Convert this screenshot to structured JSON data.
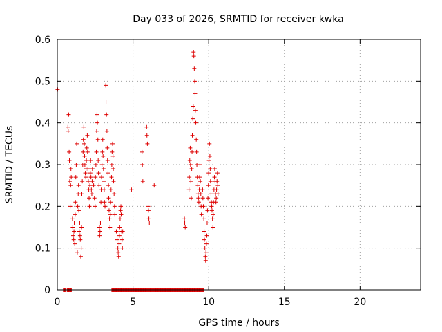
{
  "chart_data": {
    "type": "scatter",
    "title": "Day 033 of 2026, SRMTID for receiver kwka",
    "xlabel": "GPS time / hours",
    "ylabel": "SRMTID / TECUs",
    "xlim": [
      0,
      24
    ],
    "ylim": [
      0,
      0.6
    ],
    "x_ticks": [
      0,
      5,
      10,
      15,
      20
    ],
    "x_tick_labels": [
      "0",
      "5",
      "10",
      "15",
      "20"
    ],
    "y_ticks": [
      0,
      0.1,
      0.2,
      0.3,
      0.4,
      0.5,
      0.6
    ],
    "y_tick_labels": [
      "0",
      "0.1",
      "0.2",
      "0.3",
      "0.4",
      "0.5",
      "0.6"
    ],
    "grid": true,
    "marker": "plus",
    "color": "#dd0000",
    "series": [
      {
        "points": [
          [
            0.02,
            0.48
          ],
          [
            0.7,
            0.39
          ],
          [
            0.72,
            0.38
          ],
          [
            0.75,
            0.42
          ],
          [
            0.78,
            0.33
          ],
          [
            0.8,
            0.31
          ],
          [
            0.82,
            0.26
          ],
          [
            0.85,
            0.2
          ],
          [
            0.88,
            0.25
          ],
          [
            0.9,
            0.29
          ],
          [
            0.92,
            0.27
          ],
          [
            1.0,
            0.17
          ],
          [
            1.02,
            0.15
          ],
          [
            1.05,
            0.13
          ],
          [
            1.08,
            0.12
          ],
          [
            1.1,
            0.14
          ],
          [
            1.12,
            0.16
          ],
          [
            1.15,
            0.11
          ],
          [
            1.18,
            0.18
          ],
          [
            1.2,
            0.21
          ],
          [
            1.22,
            0.27
          ],
          [
            1.25,
            0.3
          ],
          [
            1.28,
            0.35
          ],
          [
            1.3,
            0.1
          ],
          [
            1.32,
            0.09
          ],
          [
            1.35,
            0.2
          ],
          [
            1.38,
            0.23
          ],
          [
            1.4,
            0.25
          ],
          [
            1.42,
            0.19
          ],
          [
            1.45,
            0.14
          ],
          [
            1.48,
            0.16
          ],
          [
            1.5,
            0.13
          ],
          [
            1.52,
            0.12
          ],
          [
            1.55,
            0.08
          ],
          [
            1.58,
            0.1
          ],
          [
            1.6,
            0.15
          ],
          [
            1.62,
            0.23
          ],
          [
            1.65,
            0.26
          ],
          [
            1.68,
            0.3
          ],
          [
            1.7,
            0.33
          ],
          [
            1.72,
            0.36
          ],
          [
            1.75,
            0.39
          ],
          [
            1.78,
            0.35
          ],
          [
            1.8,
            0.32
          ],
          [
            1.82,
            0.3
          ],
          [
            1.85,
            0.28
          ],
          [
            1.88,
            0.27
          ],
          [
            1.9,
            0.29
          ],
          [
            1.92,
            0.31
          ],
          [
            1.95,
            0.34
          ],
          [
            1.98,
            0.37
          ],
          [
            2.0,
            0.33
          ],
          [
            2.02,
            0.29
          ],
          [
            2.05,
            0.26
          ],
          [
            2.08,
            0.24
          ],
          [
            2.1,
            0.22
          ],
          [
            2.12,
            0.2
          ],
          [
            2.15,
            0.25
          ],
          [
            2.18,
            0.28
          ],
          [
            2.2,
            0.31
          ],
          [
            2.22,
            0.27
          ],
          [
            2.25,
            0.24
          ],
          [
            2.28,
            0.23
          ],
          [
            2.3,
            0.26
          ],
          [
            2.32,
            0.29
          ],
          [
            2.4,
            0.25
          ],
          [
            2.45,
            0.22
          ],
          [
            2.5,
            0.2
          ],
          [
            2.52,
            0.27
          ],
          [
            2.55,
            0.3
          ],
          [
            2.58,
            0.33
          ],
          [
            2.6,
            0.38
          ],
          [
            2.62,
            0.42
          ],
          [
            2.65,
            0.4
          ],
          [
            2.68,
            0.36
          ],
          [
            2.7,
            0.31
          ],
          [
            2.72,
            0.28
          ],
          [
            2.75,
            0.25
          ],
          [
            2.78,
            0.15
          ],
          [
            2.8,
            0.13
          ],
          [
            2.82,
            0.14
          ],
          [
            2.85,
            0.16
          ],
          [
            2.88,
            0.21
          ],
          [
            2.9,
            0.24
          ],
          [
            2.92,
            0.27
          ],
          [
            2.95,
            0.3
          ],
          [
            2.98,
            0.33
          ],
          [
            3.0,
            0.36
          ],
          [
            3.02,
            0.32
          ],
          [
            3.05,
            0.29
          ],
          [
            3.08,
            0.26
          ],
          [
            3.1,
            0.24
          ],
          [
            3.12,
            0.21
          ],
          [
            3.15,
            0.2
          ],
          [
            3.2,
            0.49
          ],
          [
            3.22,
            0.45
          ],
          [
            3.25,
            0.42
          ],
          [
            3.28,
            0.38
          ],
          [
            3.3,
            0.34
          ],
          [
            3.32,
            0.31
          ],
          [
            3.35,
            0.28
          ],
          [
            3.38,
            0.25
          ],
          [
            3.4,
            0.22
          ],
          [
            3.42,
            0.19
          ],
          [
            3.45,
            0.17
          ],
          [
            3.48,
            0.15
          ],
          [
            3.5,
            0.18
          ],
          [
            3.52,
            0.21
          ],
          [
            3.55,
            0.24
          ],
          [
            3.58,
            0.27
          ],
          [
            3.6,
            0.3
          ],
          [
            3.62,
            0.33
          ],
          [
            3.65,
            0.35
          ],
          [
            3.68,
            0.32
          ],
          [
            3.7,
            0.29
          ],
          [
            3.72,
            0.26
          ],
          [
            3.75,
            0.23
          ],
          [
            3.78,
            0.2
          ],
          [
            3.8,
            0.18
          ],
          [
            3.9,
            0.14
          ],
          [
            3.95,
            0.12
          ],
          [
            4.0,
            0.1
          ],
          [
            4.02,
            0.09
          ],
          [
            4.05,
            0.08
          ],
          [
            4.08,
            0.11
          ],
          [
            4.1,
            0.13
          ],
          [
            4.12,
            0.15
          ],
          [
            4.15,
            0.17
          ],
          [
            4.18,
            0.19
          ],
          [
            4.2,
            0.2
          ],
          [
            4.22,
            0.18
          ],
          [
            4.25,
            0.14
          ],
          [
            4.28,
            0.12
          ],
          [
            4.3,
            0.1
          ],
          [
            4.32,
            0.14
          ],
          [
            4.9,
            0.24
          ],
          [
            5.6,
            0.33
          ],
          [
            5.62,
            0.3
          ],
          [
            5.65,
            0.26
          ],
          [
            5.9,
            0.39
          ],
          [
            5.92,
            0.37
          ],
          [
            5.95,
            0.35
          ],
          [
            6.0,
            0.2
          ],
          [
            6.02,
            0.19
          ],
          [
            6.05,
            0.17
          ],
          [
            6.08,
            0.16
          ],
          [
            6.4,
            0.25
          ],
          [
            8.4,
            0.17
          ],
          [
            8.42,
            0.16
          ],
          [
            8.45,
            0.15
          ],
          [
            8.7,
            0.24
          ],
          [
            8.72,
            0.27
          ],
          [
            8.75,
            0.31
          ],
          [
            8.78,
            0.34
          ],
          [
            8.8,
            0.3
          ],
          [
            8.82,
            0.26
          ],
          [
            8.85,
            0.22
          ],
          [
            8.88,
            0.29
          ],
          [
            8.9,
            0.33
          ],
          [
            8.92,
            0.37
          ],
          [
            8.95,
            0.41
          ],
          [
            8.98,
            0.44
          ],
          [
            9.0,
            0.57
          ],
          [
            9.02,
            0.56
          ],
          [
            9.05,
            0.53
          ],
          [
            9.08,
            0.5
          ],
          [
            9.1,
            0.47
          ],
          [
            9.12,
            0.43
          ],
          [
            9.15,
            0.4
          ],
          [
            9.18,
            0.36
          ],
          [
            9.2,
            0.33
          ],
          [
            9.22,
            0.3
          ],
          [
            9.25,
            0.27
          ],
          [
            9.28,
            0.25
          ],
          [
            9.3,
            0.23
          ],
          [
            9.32,
            0.22
          ],
          [
            9.35,
            0.21
          ],
          [
            9.38,
            0.24
          ],
          [
            9.4,
            0.27
          ],
          [
            9.42,
            0.3
          ],
          [
            9.45,
            0.26
          ],
          [
            9.48,
            0.23
          ],
          [
            9.5,
            0.2
          ],
          [
            9.52,
            0.18
          ],
          [
            9.6,
            0.24
          ],
          [
            9.62,
            0.22
          ],
          [
            9.65,
            0.2
          ],
          [
            9.68,
            0.17
          ],
          [
            9.7,
            0.14
          ],
          [
            9.72,
            0.12
          ],
          [
            9.75,
            0.1
          ],
          [
            9.78,
            0.08
          ],
          [
            9.8,
            0.07
          ],
          [
            9.82,
            0.09
          ],
          [
            9.85,
            0.11
          ],
          [
            9.88,
            0.13
          ],
          [
            9.9,
            0.16
          ],
          [
            9.92,
            0.19
          ],
          [
            9.95,
            0.22
          ],
          [
            9.98,
            0.25
          ],
          [
            10.0,
            0.28
          ],
          [
            10.02,
            0.31
          ],
          [
            10.05,
            0.35
          ],
          [
            10.08,
            0.32
          ],
          [
            10.1,
            0.29
          ],
          [
            10.12,
            0.26
          ],
          [
            10.15,
            0.23
          ],
          [
            10.18,
            0.21
          ],
          [
            10.2,
            0.2
          ],
          [
            10.22,
            0.19
          ],
          [
            10.25,
            0.17
          ],
          [
            10.28,
            0.15
          ],
          [
            10.3,
            0.18
          ],
          [
            10.32,
            0.21
          ],
          [
            10.35,
            0.24
          ],
          [
            10.38,
            0.27
          ],
          [
            10.4,
            0.29
          ],
          [
            10.42,
            0.26
          ],
          [
            10.45,
            0.23
          ],
          [
            10.48,
            0.21
          ],
          [
            10.5,
            0.22
          ],
          [
            10.52,
            0.24
          ],
          [
            10.55,
            0.26
          ],
          [
            10.58,
            0.28
          ],
          [
            10.6,
            0.25
          ],
          [
            10.62,
            0.23
          ]
        ],
        "zero_runs": [
          [
            0.4,
            0.55
          ],
          [
            0.65,
            0.95
          ],
          [
            3.6,
            9.7
          ]
        ]
      }
    ]
  }
}
